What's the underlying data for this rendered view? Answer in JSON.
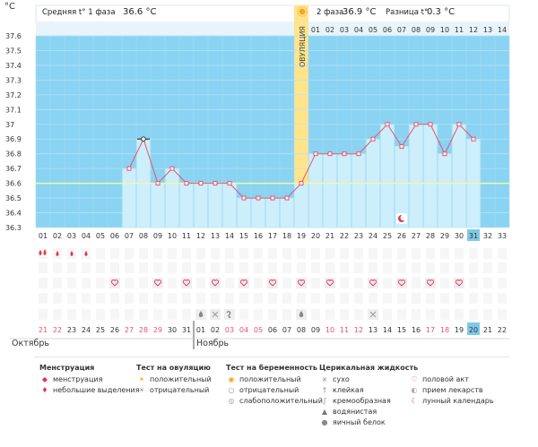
{
  "unit_label": "°C",
  "header": {
    "phase1": "Средняя t° 1 фаза",
    "phase1_value": "36.6 °C",
    "phase2": "2 фаза",
    "phase2_value": "36.9 °C",
    "diff": "Разница t°",
    "diff_value": "0.3 °C",
    "ovulation_label": "ОВУЛЯЦИЯ"
  },
  "chart_data": {
    "type": "line",
    "title": "",
    "ylim": [
      36.3,
      37.6
    ],
    "y_ticks": [
      "36.3",
      "36.4",
      "36.5",
      "36.6",
      "36.7",
      "36.8",
      "36.9",
      "37",
      "37.1",
      "37.2",
      "37.3",
      "37.4",
      "37.5",
      "37.6"
    ],
    "cycle_days": [
      "01",
      "02",
      "03",
      "04",
      "05",
      "06",
      "07",
      "08",
      "09",
      "10",
      "11",
      "12",
      "13",
      "14",
      "15",
      "16",
      "17",
      "18",
      "19",
      "20",
      "21",
      "22",
      "23",
      "24",
      "25",
      "26",
      "27",
      "28",
      "29",
      "30",
      "31",
      "32",
      "33"
    ],
    "phase2_days": [
      "01",
      "02",
      "03",
      "04",
      "05",
      "06",
      "07",
      "08",
      "09",
      "10",
      "11",
      "12",
      "13",
      "14"
    ],
    "series": [
      {
        "x": [
          7,
          8,
          9,
          10,
          11,
          12,
          13,
          14,
          15,
          16,
          17,
          18,
          19,
          20,
          21,
          22,
          23,
          24,
          25,
          26,
          27,
          28,
          29,
          30,
          31
        ],
        "values": [
          36.7,
          36.9,
          36.6,
          36.7,
          36.6,
          36.6,
          36.6,
          36.6,
          36.5,
          36.5,
          36.5,
          36.5,
          36.6,
          36.8,
          36.8,
          36.8,
          36.8,
          36.9,
          37.0,
          36.85,
          37.0,
          37.0,
          36.8,
          37.0,
          36.9
        ]
      }
    ],
    "coverline": 36.6,
    "ovulation_day": 19,
    "current_day": 31,
    "lunar_day": 26
  },
  "calendar": {
    "dates": [
      "21",
      "22",
      "23",
      "24",
      "25",
      "26",
      "27",
      "28",
      "29",
      "30",
      "31",
      "01",
      "02",
      "03",
      "04",
      "05",
      "06",
      "07",
      "08",
      "09",
      "10",
      "11",
      "12",
      "13",
      "14",
      "15",
      "16",
      "17",
      "18",
      "19",
      "20",
      "21",
      "22"
    ],
    "weekend_days": [
      1,
      2,
      7,
      8,
      9,
      14,
      15,
      16,
      21,
      22,
      23,
      28,
      29
    ],
    "month1": "Октябрь",
    "month2": "Ноябрь",
    "month2_start_day": 12,
    "today_day": 31
  },
  "markers": {
    "menstruation_big": [
      1
    ],
    "menstruation_small": [
      2,
      3,
      4
    ],
    "sex": [
      6,
      9,
      11,
      13,
      15,
      17,
      19,
      21,
      24,
      26,
      28,
      30
    ],
    "mucus_watery": [
      12,
      19
    ],
    "mucus_dry": [
      13,
      24
    ],
    "mucus_creamy": [
      14
    ]
  },
  "legend": [
    {
      "header": "Менструация",
      "items": [
        {
          "icon": "blood-drop-icon",
          "label": "менструация"
        },
        {
          "icon": "small-drop-icon",
          "label": "небольшие выделения"
        }
      ]
    },
    {
      "header": "Тест на овуляцию",
      "items": [
        {
          "icon": "sun-positive-icon",
          "label": "положительный"
        },
        {
          "icon": "sun-negative-icon",
          "label": "отрицательный"
        }
      ]
    },
    {
      "header": "Тест на беременность",
      "items": [
        {
          "icon": "pregnancy-positive-icon",
          "label": "положительный"
        },
        {
          "icon": "pregnancy-negative-icon",
          "label": "отрицательный"
        },
        {
          "icon": "pregnancy-weak-icon",
          "label": "слабоположительный"
        }
      ]
    },
    {
      "header": "Церикальная жидкость",
      "items": [
        {
          "icon": "dry-icon",
          "label": "сухо"
        },
        {
          "icon": "sticky-icon",
          "label": "клейкая"
        },
        {
          "icon": "creamy-icon",
          "label": "кремообразная"
        },
        {
          "icon": "watery-icon",
          "label": "водянистая"
        },
        {
          "icon": "eggwhite-icon",
          "label": "яичный белок"
        }
      ]
    },
    {
      "header": "",
      "items": [
        {
          "icon": "heart-icon",
          "label": "половой акт"
        },
        {
          "icon": "pill-icon",
          "label": "прием лекарств"
        },
        {
          "icon": "moon-icon",
          "label": "лунный календарь"
        }
      ]
    }
  ],
  "colors": {
    "sky": "#8ad3f2",
    "bar": "#cdeefb",
    "ovulation": "#ffe48c",
    "line": "#e8536f",
    "coverline": "#f2f7a6",
    "highlight": "#7ec9e8",
    "red_text": "#e8536f"
  }
}
